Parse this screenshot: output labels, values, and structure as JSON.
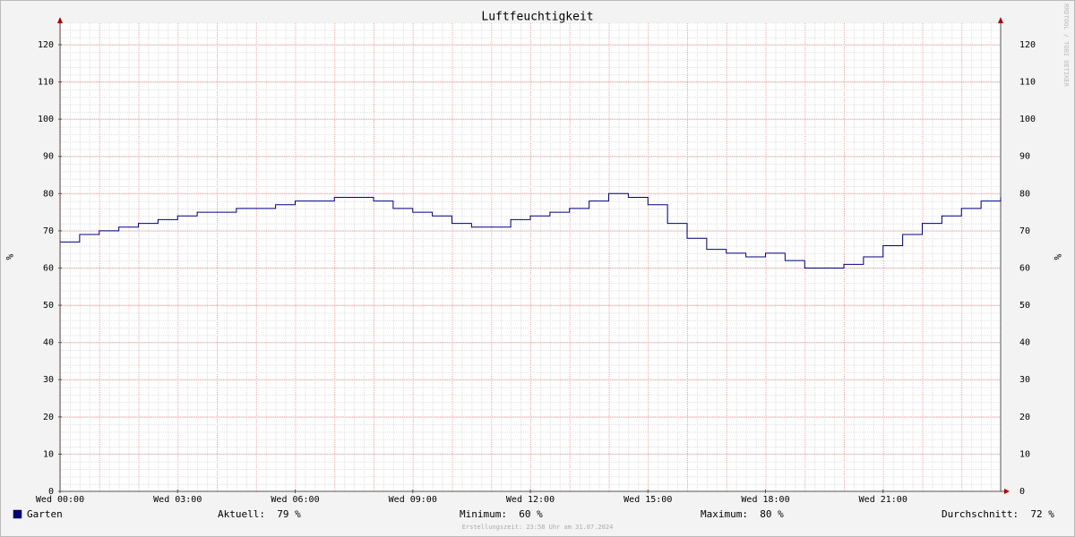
{
  "chart_data": {
    "type": "line",
    "title": "Luftfeuchtigkeit",
    "y_label": "%",
    "step": true,
    "x": [
      0,
      0.5,
      1,
      1.5,
      2,
      2.5,
      3,
      3.5,
      4,
      4.5,
      5,
      5.5,
      6,
      6.5,
      7,
      7.5,
      8,
      8.5,
      9,
      9.5,
      10,
      10.5,
      11,
      11.5,
      12,
      12.5,
      13,
      13.5,
      14,
      14.5,
      15,
      15.5,
      16,
      16.5,
      17,
      17.5,
      18,
      18.5,
      19,
      19.5,
      20,
      20.5,
      21,
      21.5,
      22,
      22.5,
      23,
      23.5,
      24
    ],
    "series": [
      {
        "name": "Garten",
        "color": "#000080",
        "values": [
          67,
          69,
          70,
          71,
          72,
          73,
          74,
          75,
          75,
          76,
          76,
          77,
          78,
          78,
          79,
          79,
          78,
          76,
          75,
          74,
          72,
          71,
          71,
          73,
          74,
          75,
          76,
          78,
          80,
          79,
          77,
          72,
          68,
          65,
          64,
          63,
          64,
          62,
          60,
          60,
          61,
          63,
          66,
          69,
          72,
          74,
          76,
          78,
          79
        ]
      }
    ],
    "xlim": [
      0,
      24
    ],
    "xticks": [
      {
        "value": 0,
        "label": "Wed 00:00"
      },
      {
        "value": 3,
        "label": "Wed 03:00"
      },
      {
        "value": 6,
        "label": "Wed 06:00"
      },
      {
        "value": 9,
        "label": "Wed 09:00"
      },
      {
        "value": 12,
        "label": "Wed 12:00"
      },
      {
        "value": 15,
        "label": "Wed 15:00"
      },
      {
        "value": 18,
        "label": "Wed 18:00"
      },
      {
        "value": 21,
        "label": "Wed 21:00"
      }
    ],
    "ylim": [
      0,
      126
    ],
    "yticks": [
      0,
      10,
      20,
      30,
      40,
      50,
      60,
      70,
      80,
      90,
      100,
      110,
      120
    ],
    "grid": true,
    "stats": [
      {
        "label": "Aktuell:",
        "value": 79
      },
      {
        "label": "Minimum:",
        "value": 60
      },
      {
        "label": "Maximum:",
        "value": 80
      },
      {
        "label": "Durchschnitt:",
        "value": 72
      }
    ],
    "footer": "Erstellungszeit: 23:58 Uhr am 31.07.2024",
    "watermark": "RRDTOOL / TOBI OETIKER"
  }
}
